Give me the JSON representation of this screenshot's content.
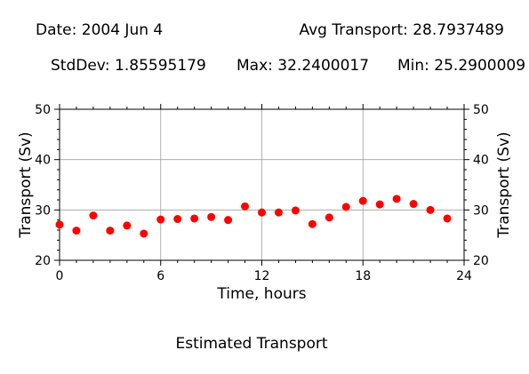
{
  "header": {
    "date": "Date: 2004 Jun 4",
    "avg": "Avg Transport: 28.7937489",
    "stddev": "StdDev: 1.85595179",
    "max": "Max: 32.2400017",
    "min": "Min: 25.2900009"
  },
  "footer": {
    "caption": "Estimated Transport"
  },
  "colors": {
    "point": "#ff0000",
    "grid": "#a0a0a0",
    "axis": "#000000"
  },
  "chart_data": {
    "type": "scatter",
    "xlabel": "Time, hours",
    "ylabel": "Transport (Sv)",
    "y2label": "Transport (Sv)",
    "xlim": [
      0,
      24
    ],
    "ylim": [
      20,
      50
    ],
    "xticks": [
      0,
      6,
      12,
      18,
      24
    ],
    "yticks": [
      20,
      30,
      40,
      50
    ],
    "grid": true,
    "x": [
      0,
      1,
      2,
      3,
      4,
      5,
      6,
      7,
      8,
      9,
      10,
      11,
      12,
      13,
      14,
      15,
      16,
      17,
      18,
      19,
      20,
      21,
      22,
      23
    ],
    "y": [
      27.1,
      25.9,
      28.9,
      25.9,
      26.9,
      25.3,
      28.1,
      28.2,
      28.3,
      28.6,
      28.0,
      30.7,
      29.5,
      29.5,
      29.9,
      27.2,
      28.5,
      30.6,
      31.8,
      31.1,
      32.2,
      31.2,
      30.0,
      28.3
    ]
  }
}
